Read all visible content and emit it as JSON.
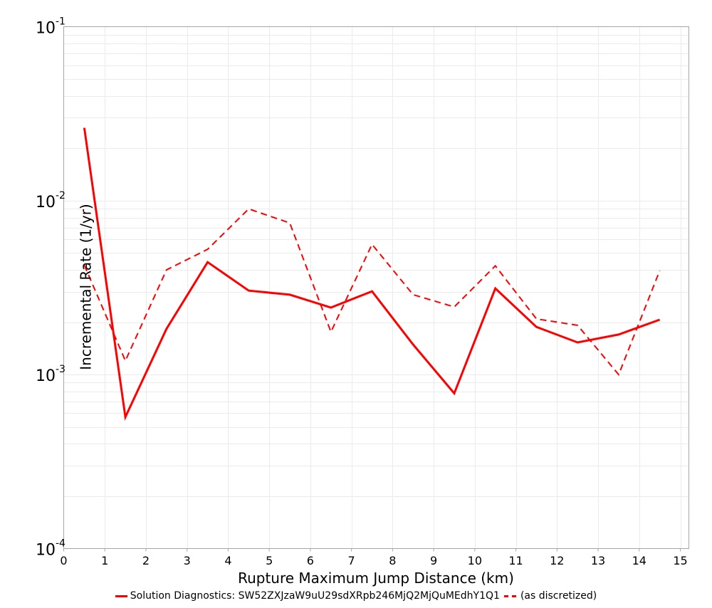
{
  "chart_data": {
    "type": "line",
    "title": "",
    "xlabel": "Rupture Maximum Jump Distance (km)",
    "ylabel": "Incremental Rate (1/yr)",
    "xlim": [
      0,
      15.2
    ],
    "ylim": [
      0.0001,
      0.1
    ],
    "yscale": "log",
    "grid": true,
    "legend_position": "bottom",
    "x_ticks": [
      0,
      1,
      2,
      3,
      4,
      5,
      6,
      7,
      8,
      9,
      10,
      11,
      12,
      13,
      14,
      15
    ],
    "y_ticks": [
      {
        "base": "10",
        "exp": "-1",
        "value": 0.1
      },
      {
        "base": "10",
        "exp": "-2",
        "value": 0.01
      },
      {
        "base": "10",
        "exp": "-3",
        "value": 0.001
      },
      {
        "base": "10",
        "exp": "-4",
        "value": 0.0001
      }
    ],
    "x": [
      0.5,
      1.5,
      2.5,
      3.5,
      4.5,
      5.5,
      6.5,
      7.5,
      8.5,
      9.5,
      10.5,
      11.5,
      12.5,
      13.5,
      14.5
    ],
    "series": [
      {
        "name": "Solution Diagnostics: SW52ZXJzaW9uU29sdXRpb246MjQ2MjQuMEdhY1Q1",
        "style": "solid",
        "color": "#ff0000",
        "values": [
          0.0262,
          0.00057,
          0.00183,
          0.00443,
          0.00304,
          0.00288,
          0.00243,
          0.00301,
          0.00149,
          0.00078,
          0.00313,
          0.00188,
          0.00153,
          0.0017,
          0.00207
        ]
      },
      {
        "name": "(as discretized)",
        "style": "dashed",
        "color": "#ff0000",
        "values": [
          0.00426,
          0.0012,
          0.004,
          0.00525,
          0.00897,
          0.00744,
          0.00176,
          0.00561,
          0.00288,
          0.00245,
          0.00422,
          0.00209,
          0.00192,
          0.001,
          0.00396
        ]
      }
    ]
  },
  "legend": {
    "solid_label": "Solution Diagnostics: SW52ZXJzaW9uU29sdXRpb246MjQ2MjQuMEdhY1Q1",
    "dashed_label": "(as discretized)"
  }
}
